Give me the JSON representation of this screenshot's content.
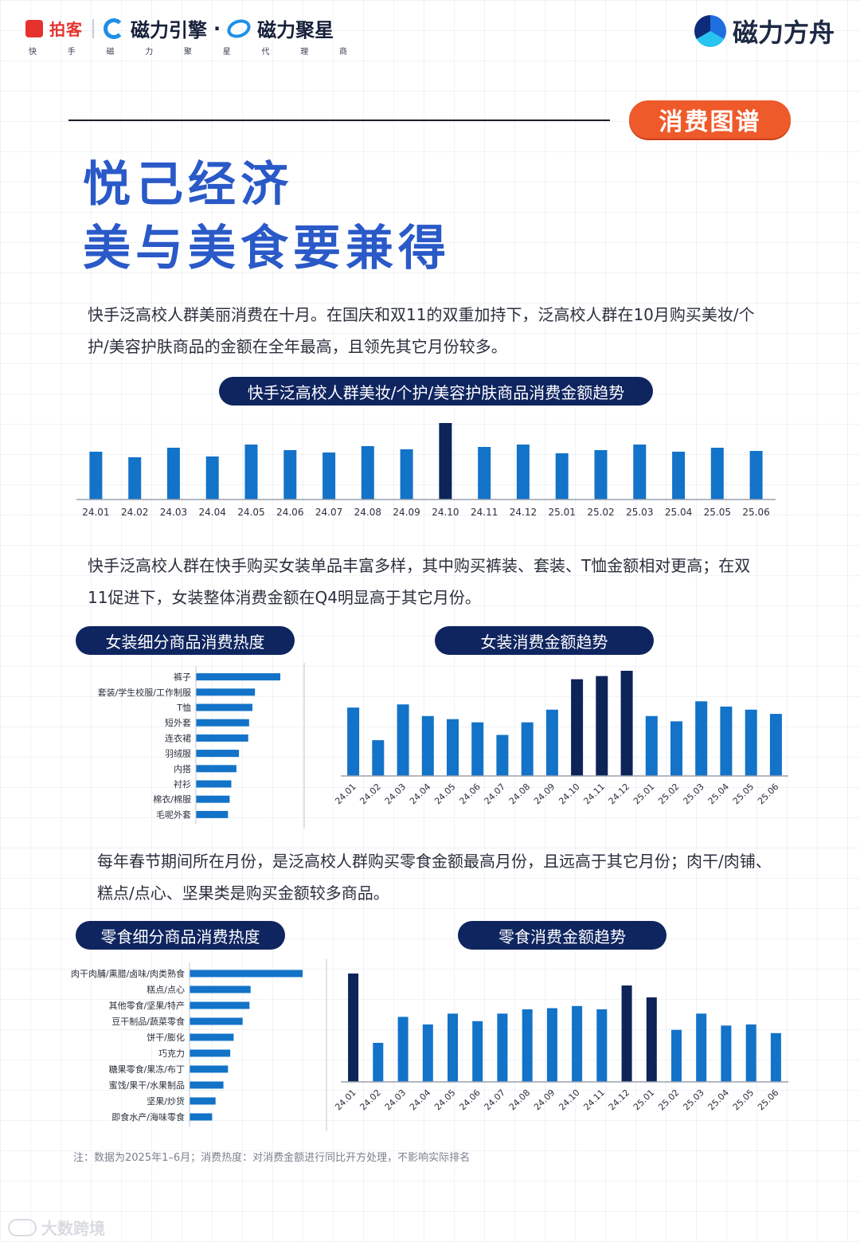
{
  "header": {
    "paike_label": "拍客",
    "cili_engine": "磁力引擎",
    "dot": "·",
    "cili_star": "磁力聚星",
    "sub_chars": [
      "快",
      "手",
      "磁",
      "力",
      "聚",
      "星",
      "代",
      "理",
      "商"
    ],
    "ark_label": "磁力方舟"
  },
  "badge": "消费图谱",
  "title_line1": "悦己经济",
  "title_line2": "美与美食要兼得",
  "para1": "快手泛高校人群美丽消费在十月。在国庆和双11的双重加持下，泛高校人群在10月购买美妆/个护/美容护肤商品的金额在全年最高，且领先其它月份较多。",
  "para2": "快手泛高校人群在快手购买女装单品丰富多样，其中购买裤装、套装、T恤金额相对更高；在双11促进下，女装整体消费金额在Q4明显高于其它月份。",
  "para3": "每年春节期间所在月份，是泛高校人群购买零食金额最高月份，且远高于其它月份；肉干/肉铺、糕点/点心、坚果类是购买金额较多商品。",
  "note": "注：数据为2025年1–6月；消费热度：对消费金额进行同比开方处理，不影响实际排名",
  "watermark": "大数跨境",
  "colors": {
    "bar": "#1273c8",
    "highlight": "#0d2459",
    "pill": "#0f2560",
    "badge": "#ef5a2b",
    "title": "#2a59c8"
  },
  "chart_data": [
    {
      "type": "bar",
      "title": "快手泛高校人群美妆/个护/美容护肤商品消费金额趋势",
      "categories": [
        "24.01",
        "24.02",
        "24.03",
        "24.04",
        "24.05",
        "24.06",
        "24.07",
        "24.08",
        "24.09",
        "24.10",
        "24.11",
        "24.12",
        "25.01",
        "25.02",
        "25.03",
        "25.04",
        "25.05",
        "25.06"
      ],
      "values": [
        60,
        53,
        65,
        54,
        69,
        62,
        59,
        67,
        63,
        96,
        66,
        69,
        58,
        62,
        69,
        60,
        65,
        61
      ],
      "highlight": [
        "24.10"
      ],
      "ylim": [
        0,
        100
      ]
    },
    {
      "type": "bar",
      "orientation": "horizontal",
      "title": "女装细分商品消费热度",
      "categories": [
        "裤子",
        "套装/学生校服/工作制服",
        "T恤",
        "短外套",
        "连衣裙",
        "羽绒服",
        "内搭",
        "衬衫",
        "棉衣/棉服",
        "毛呢外套"
      ],
      "values": [
        100,
        70,
        67,
        63,
        62,
        51,
        48,
        42,
        40,
        38
      ],
      "xlim": [
        0,
        100
      ]
    },
    {
      "type": "bar",
      "title": "女装消费金额趋势",
      "categories": [
        "24.01",
        "24.02",
        "24.03",
        "24.04",
        "24.05",
        "24.06",
        "24.07",
        "24.08",
        "24.09",
        "24.10",
        "24.11",
        "24.12",
        "25.01",
        "25.02",
        "25.03",
        "25.04",
        "25.05",
        "25.06"
      ],
      "values": [
        65,
        34,
        68,
        57,
        54,
        51,
        39,
        51,
        63,
        92,
        95,
        100,
        57,
        52,
        71,
        66,
        63,
        59
      ],
      "highlight": [
        "24.10",
        "24.11",
        "24.12"
      ],
      "ylim": [
        0,
        100
      ]
    },
    {
      "type": "bar",
      "orientation": "horizontal",
      "title": "零食细分商品消费热度",
      "categories": [
        "肉干肉脯/熏腊/卤味/肉类熟食",
        "糕点/点心",
        "其他零食/坚果/特产",
        "豆干制品/蔬菜零食",
        "饼干/膨化",
        "巧克力",
        "糖果零食/果冻/布丁",
        "蜜饯/果干/水果制品",
        "坚果/炒货",
        "即食水产/海味零食"
      ],
      "values": [
        100,
        54,
        53,
        47,
        39,
        36,
        34,
        30,
        23,
        20
      ],
      "xlim": [
        0,
        100
      ]
    },
    {
      "type": "bar",
      "title": "零食消费金额趋势",
      "categories": [
        "24.01",
        "24.02",
        "24.03",
        "24.04",
        "24.05",
        "24.06",
        "24.07",
        "24.08",
        "24.09",
        "24.10",
        "24.11",
        "24.12",
        "25.01",
        "25.02",
        "25.03",
        "25.04",
        "25.05",
        "25.06"
      ],
      "values": [
        100,
        36,
        60,
        53,
        63,
        56,
        63,
        67,
        68,
        70,
        67,
        89,
        78,
        48,
        63,
        52,
        53,
        45
      ],
      "highlight": [
        "24.01",
        "24.12",
        "25.01"
      ],
      "ylim": [
        0,
        100
      ]
    }
  ]
}
